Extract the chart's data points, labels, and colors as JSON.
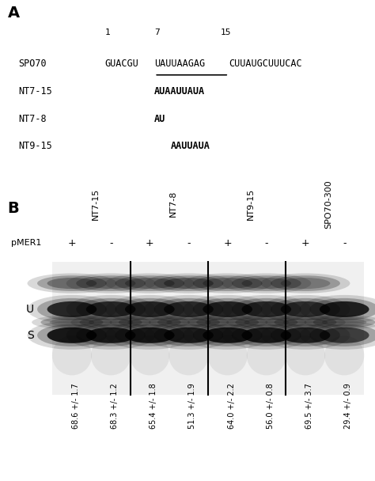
{
  "panel_A_label": "A",
  "panel_B_label": "B",
  "seq_labels": [
    "SPO70",
    "NT7-15",
    "NT7-8",
    "NT9-15"
  ],
  "seq_number_labels": [
    "1",
    "7",
    "15"
  ],
  "spo70_prefix": "GUACGU",
  "spo70_underline": "UAUUAAGAG",
  "spo70_suffix": "CUUAUGCUUUCAC",
  "nt7_15_seq": "AUAAUUAUA",
  "nt7_8_seq": "AU",
  "nt9_15_seq": "AAUUAUA",
  "group_labels": [
    "NT7-15",
    "NT7-8",
    "NT9-15",
    "SPO70-300"
  ],
  "pmer1_labels": [
    "+",
    "-",
    "+",
    "-",
    "+",
    "-",
    "+",
    "-"
  ],
  "lane_values": [
    "68.6 +/- 1.7",
    "68.3 +/- 1.2",
    "65.4 +/- 1.8",
    "51.3 +/- 1.9",
    "64.0 +/- 2.2",
    "56.0 +/- 0.8",
    "69.5 +/- 3.7",
    "29.4 +/- 0.9"
  ],
  "band_U_label": "U",
  "band_S_label": "S",
  "pmer1_text": "pMER1",
  "bg_color": "#ffffff",
  "gel_bg": "#e8e8e8",
  "band_dark": "#111111",
  "band_mid": "#555555",
  "band_light": "#aaaaaa"
}
